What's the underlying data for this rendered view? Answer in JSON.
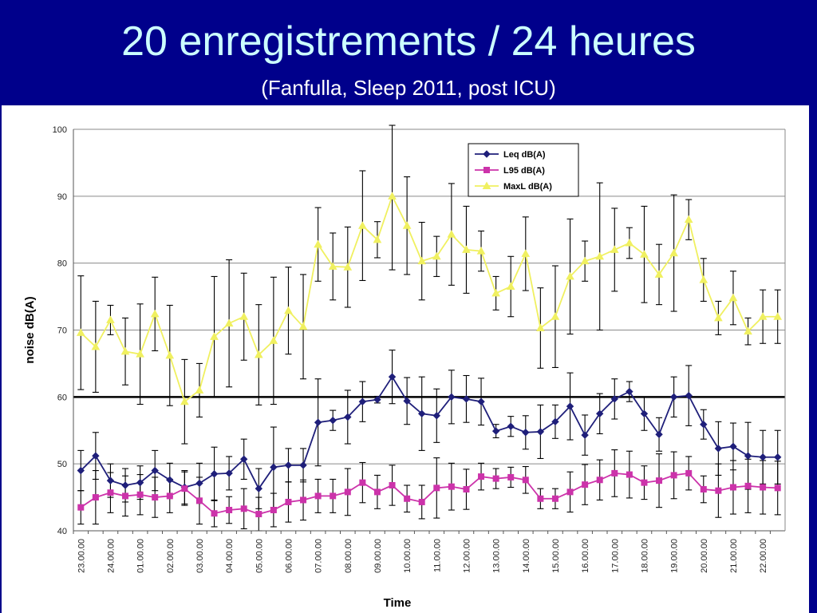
{
  "slide": {
    "title": "20 enregistrements / 24 heures",
    "subtitle": "(Fanfulla, Sleep 2011, post ICU)"
  },
  "colors": {
    "background": "#00008b",
    "title": "#ccffff",
    "leq": "#1f1f7a",
    "l95": "#cc33aa",
    "maxl": "#f0f060"
  },
  "chart_data": {
    "type": "line",
    "title": "",
    "xlabel": "Time",
    "ylabel": "noise dB(A)",
    "ylim": [
      40,
      100
    ],
    "yticks": [
      40,
      50,
      60,
      70,
      80,
      90,
      100
    ],
    "grid": true,
    "reference_line": 60,
    "legend_position": "top-center",
    "x": [
      "23.00.00",
      "",
      "24.00.00",
      "",
      "01.00.00",
      "",
      "02.00.00",
      "",
      "03.00.00",
      "",
      "04.00.00",
      "",
      "05.00.00",
      "",
      "06.00.00",
      "",
      "07.00.00",
      "",
      "08.00.00",
      "",
      "09.00.00",
      "",
      "10.00.00",
      "",
      "11.00.00",
      "",
      "12.00.00",
      "",
      "13.00.00",
      "",
      "14.00.00",
      "",
      "15.00.00",
      "",
      "16.00.00",
      "",
      "17.00.00",
      "",
      "18.00.00",
      "",
      "19.00.00",
      "",
      "20.00.00",
      "",
      "21.00.00",
      "",
      "22.00.00",
      ""
    ],
    "series": [
      {
        "name": "Leq dB(A)",
        "marker": "diamond",
        "values": [
          49,
          51.2,
          47.5,
          46.8,
          47.2,
          49,
          47.6,
          46.5,
          47.1,
          48.5,
          48.6,
          50.7,
          46.3,
          49.5,
          49.8,
          49.8,
          56.2,
          56.5,
          57,
          59.3,
          59.6,
          63,
          59.4,
          57.5,
          57.2,
          60,
          59.7,
          59.3,
          54.9,
          55.6,
          54.7,
          54.8,
          56.3,
          58.6,
          54.3,
          57.5,
          59.7,
          60.8,
          57.5,
          54.4,
          60,
          60.2,
          55.9,
          52.3,
          52.6,
          51.2,
          51,
          51
        ],
        "err": [
          3,
          3.5,
          2.5,
          2.5,
          2.5,
          3,
          2.5,
          2.5,
          3,
          4,
          2.5,
          3,
          3,
          6,
          2.5,
          2.5,
          6.5,
          1.5,
          4,
          3,
          0.5,
          4,
          3.5,
          5.5,
          4,
          4,
          3.5,
          3.5,
          1,
          1.5,
          2.5,
          4,
          2.5,
          5,
          3,
          3,
          3,
          1.5,
          2.5,
          2.5,
          3,
          4.5,
          2.2,
          4,
          3.5,
          5,
          4,
          4
        ]
      },
      {
        "name": "L95 dB(A)",
        "marker": "square",
        "values": [
          43.5,
          45,
          45.7,
          45.2,
          45.4,
          45,
          45.2,
          46.3,
          44.5,
          42.6,
          43.1,
          43.3,
          42.5,
          43.1,
          44.3,
          44.6,
          45.2,
          45.2,
          45.8,
          47.2,
          45.8,
          46.8,
          44.8,
          44.3,
          46.4,
          46.6,
          46.2,
          48.1,
          47.8,
          48,
          47.6,
          44.8,
          44.8,
          45.8,
          46.9,
          47.6,
          48.6,
          48.4,
          47.2,
          47.5,
          48.3,
          48.6,
          46.2,
          46,
          46.5,
          46.7,
          46.5,
          46.4
        ],
        "err": [
          2.5,
          4,
          3,
          3,
          3,
          3,
          2.5,
          2.5,
          3.5,
          2,
          2,
          3,
          2.5,
          2.5,
          3,
          3,
          2.5,
          2.5,
          3.5,
          3,
          2.5,
          3,
          2,
          2.5,
          4.5,
          3.5,
          3,
          2,
          1.5,
          1.5,
          2,
          1.5,
          1.5,
          3,
          3,
          3,
          3.5,
          3.5,
          2.5,
          4,
          3.5,
          2.5,
          2,
          4,
          4,
          4,
          4,
          4
        ]
      },
      {
        "name": "MaxL dB(A)",
        "marker": "triangle",
        "values": [
          69.6,
          67.5,
          71.5,
          66.8,
          66.4,
          72.4,
          66.2,
          59.3,
          61,
          69,
          71,
          72,
          66.3,
          68.4,
          72.9,
          70.5,
          82.8,
          79.5,
          79.4,
          85.6,
          83.5,
          90,
          85.6,
          80.3,
          81,
          84.3,
          82,
          81.8,
          75.5,
          76.5,
          81.4,
          70.3,
          72,
          78,
          80.3,
          81,
          82,
          83,
          81.3,
          78.3,
          81.5,
          86.5,
          77.5,
          71.8,
          74.8,
          69.8,
          72,
          72
        ],
        "err": [
          8.5,
          6.8,
          2.2,
          5,
          7.5,
          5.5,
          7.5,
          6.3,
          4,
          9,
          9.5,
          6.5,
          7.5,
          9.5,
          6.5,
          7.8,
          5.5,
          5,
          6,
          8.2,
          2.7,
          11,
          7.3,
          5.8,
          3,
          7.6,
          6.5,
          3,
          2.5,
          4.5,
          5.5,
          6,
          7.6,
          8.6,
          3,
          11,
          6.2,
          2.3,
          7.2,
          4.5,
          8.7,
          3,
          3.2,
          2.5,
          4,
          2,
          4,
          4
        ]
      }
    ]
  }
}
